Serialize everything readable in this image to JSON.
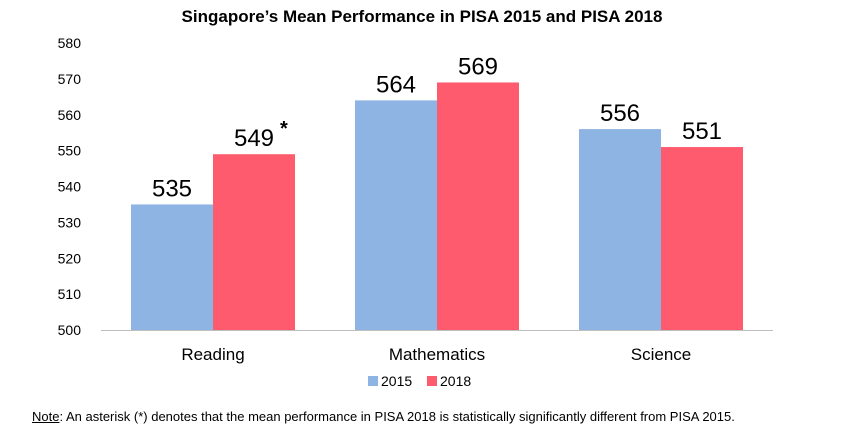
{
  "chart_data": {
    "type": "bar",
    "title": "Singapore’s Mean Performance in PISA 2015 and PISA 2018",
    "categories": [
      "Reading",
      "Mathematics",
      "Science"
    ],
    "series": [
      {
        "name": "2015",
        "values": [
          535,
          564,
          556
        ],
        "color": "#8DB4E2"
      },
      {
        "name": "2018",
        "values": [
          549,
          569,
          551
        ],
        "color": "#FF5B6E"
      }
    ],
    "data_labels": [
      [
        "535",
        "564",
        "556"
      ],
      [
        "549",
        "569",
        "551"
      ]
    ],
    "annotations": [
      {
        "series": 1,
        "category": 0,
        "text": "*"
      }
    ],
    "ylim": [
      500,
      580
    ],
    "yticks": [
      500,
      510,
      520,
      530,
      540,
      550,
      560,
      570,
      580
    ],
    "xlabel": "",
    "ylabel": "",
    "grid": false,
    "legend": "bottom-center"
  },
  "note": {
    "label": "Note",
    "text": ": An asterisk (*) denotes that the mean performance in PISA 2018 is statistically significantly different from PISA 2015."
  }
}
